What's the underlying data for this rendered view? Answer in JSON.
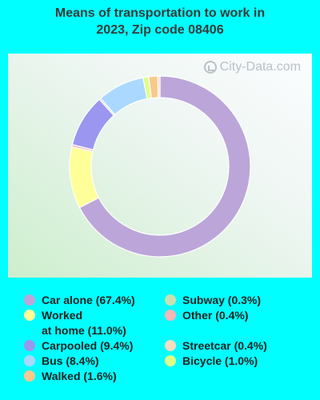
{
  "title": {
    "line1": "Means of transportation to work in",
    "line2": "2023, Zip code 08406"
  },
  "watermark": {
    "text": "City-Data.com",
    "icon": "city-data-logo-icon"
  },
  "chart_data": {
    "type": "pie",
    "variant": "donut",
    "title": "Means of transportation to work in 2023, Zip code 08406",
    "series": [
      {
        "name": "Car alone",
        "label": "Car alone (67.4%)",
        "value": 67.4,
        "color": "#bca6d9"
      },
      {
        "name": "Worked at home",
        "label": "Worked\nat home (11.0%)",
        "value": 11.0,
        "color": "#ffff99"
      },
      {
        "name": "Other",
        "label": "Other (0.4%)",
        "value": 0.4,
        "color": "#f4b6b6"
      },
      {
        "name": "Carpooled",
        "label": "Carpooled (9.4%)",
        "value": 9.4,
        "color": "#9b96ef"
      },
      {
        "name": "Subway",
        "label": "Subway (0.3%)",
        "value": 0.3,
        "color": "#c8e0b0"
      },
      {
        "name": "Bus",
        "label": "Bus (8.4%)",
        "value": 8.4,
        "color": "#aad8ff"
      },
      {
        "name": "Bicycle",
        "label": "Bicycle (1.0%)",
        "value": 1.0,
        "color": "#ddff88"
      },
      {
        "name": "Walked",
        "label": "Walked (1.6%)",
        "value": 1.6,
        "color": "#f8c98c"
      },
      {
        "name": "Streetcar",
        "label": "Streetcar (0.4%)",
        "value": 0.4,
        "color": "#f6dcc0"
      }
    ],
    "legend_order": [
      "Car alone",
      "Worked at home",
      "Carpooled",
      "Bus",
      "Walked",
      "Subway",
      "Other",
      "Streetcar",
      "Bicycle"
    ],
    "legend_placement": "bottom",
    "background": "#00ffff"
  }
}
